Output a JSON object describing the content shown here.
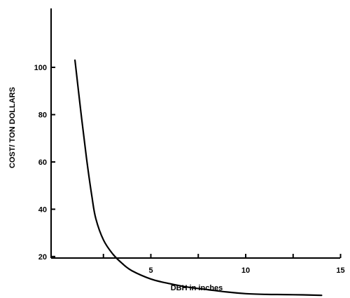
{
  "chart_data": {
    "type": "line",
    "title": "",
    "xlabel": "DBH in inches",
    "ylabel": "COST/ TON DOLLARS",
    "xlim": [
      0,
      15
    ],
    "ylim": [
      0,
      105
    ],
    "x_ticks": [
      {
        "value": 2.5,
        "label": ""
      },
      {
        "value": 5,
        "label": "5"
      },
      {
        "value": 7.5,
        "label": ""
      },
      {
        "value": 10,
        "label": "10"
      },
      {
        "value": 12.5,
        "label": ""
      },
      {
        "value": 15,
        "label": "15"
      }
    ],
    "y_ticks": [
      {
        "value": 20,
        "label": "20"
      },
      {
        "value": 40,
        "label": "40"
      },
      {
        "value": 60,
        "label": "60"
      },
      {
        "value": 80,
        "label": "80"
      },
      {
        "value": 100,
        "label": "100"
      }
    ],
    "grid": false,
    "legend": "none",
    "series": [
      {
        "color": "#000000",
        "x": [
          1.0,
          1.3,
          1.6,
          1.9,
          2.1,
          2.5,
          3.0,
          3.5,
          4.0,
          5.0,
          6.0,
          7.0,
          8.0,
          9.0,
          10.0,
          11.0,
          12.0,
          13.0,
          14.0
        ],
        "y": [
          103,
          82,
          62,
          45,
          36,
          27,
          21,
          17,
          14,
          10.5,
          8.5,
          7,
          6,
          5,
          4.3,
          4,
          3.9,
          3.8,
          3.6
        ]
      }
    ]
  }
}
